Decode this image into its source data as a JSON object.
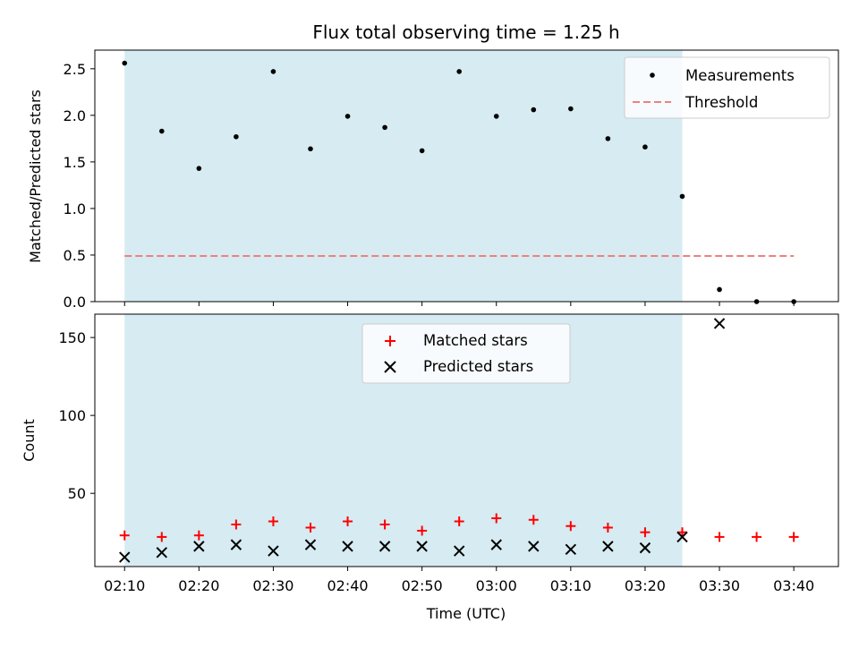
{
  "chart_data": [
    {
      "type": "scatter",
      "title": "Flux total observing time = 1.25 h",
      "ylabel": "Matched/Predicted stars",
      "xlabel": "",
      "xlim": [
        "02:06",
        "03:46"
      ],
      "ylim": [
        0,
        2.7
      ],
      "yticks": [
        "0.0",
        "0.5",
        "1.0",
        "1.5",
        "2.0",
        "2.5"
      ],
      "shaded_span": {
        "x_start": "02:10",
        "x_end": "03:25",
        "color": "#add8e6"
      },
      "legend_position": "top-right",
      "series": [
        {
          "name": "Measurements",
          "marker": "dot",
          "color": "#000000",
          "x": [
            "02:10",
            "02:15",
            "02:20",
            "02:25",
            "02:30",
            "02:35",
            "02:40",
            "02:45",
            "02:50",
            "02:55",
            "03:00",
            "03:05",
            "03:10",
            "03:15",
            "03:20",
            "03:25",
            "03:30",
            "03:35",
            "03:40"
          ],
          "y": [
            2.56,
            1.83,
            1.43,
            1.77,
            2.47,
            1.64,
            1.99,
            1.87,
            1.62,
            2.47,
            1.99,
            2.06,
            2.07,
            1.75,
            1.66,
            1.13,
            0.13,
            0.0,
            0.0
          ]
        },
        {
          "name": "Threshold",
          "marker": "dashed-line",
          "color": "#f08080",
          "x": [
            "02:10",
            "03:40"
          ],
          "y": [
            0.49,
            0.49
          ]
        }
      ]
    },
    {
      "type": "scatter",
      "title": "",
      "ylabel": "Count",
      "xlabel": "Time (UTC)",
      "xlim": [
        "02:06",
        "03:46"
      ],
      "ylim": [
        3,
        165
      ],
      "yticks": [
        "50",
        "100",
        "150"
      ],
      "xticks": [
        "02:10",
        "02:20",
        "02:30",
        "02:40",
        "02:50",
        "03:00",
        "03:10",
        "03:20",
        "03:30",
        "03:40"
      ],
      "shaded_span": {
        "x_start": "02:10",
        "x_end": "03:25",
        "color": "#add8e6"
      },
      "legend_position": "top-center",
      "series": [
        {
          "name": "Matched stars",
          "marker": "plus",
          "color": "#ff0000",
          "x": [
            "02:10",
            "02:15",
            "02:20",
            "02:25",
            "02:30",
            "02:35",
            "02:40",
            "02:45",
            "02:50",
            "02:55",
            "03:00",
            "03:05",
            "03:10",
            "03:15",
            "03:20",
            "03:25",
            "03:30",
            "03:35",
            "03:40"
          ],
          "y": [
            23,
            22,
            23,
            30,
            32,
            28,
            32,
            30,
            26,
            32,
            34,
            33,
            29,
            28,
            25,
            25,
            22,
            22,
            22
          ]
        },
        {
          "name": "Predicted stars",
          "marker": "x",
          "color": "#000000",
          "x": [
            "02:10",
            "02:15",
            "02:20",
            "02:25",
            "02:30",
            "02:35",
            "02:40",
            "02:45",
            "02:50",
            "02:55",
            "03:00",
            "03:05",
            "03:10",
            "03:15",
            "03:20",
            "03:25",
            "03:30",
            "03:35",
            "03:40"
          ],
          "y": [
            9,
            12,
            16,
            17,
            13,
            17,
            16,
            16,
            16,
            13,
            17,
            16,
            14,
            16,
            15,
            22,
            159,
            null,
            null
          ]
        }
      ]
    }
  ]
}
